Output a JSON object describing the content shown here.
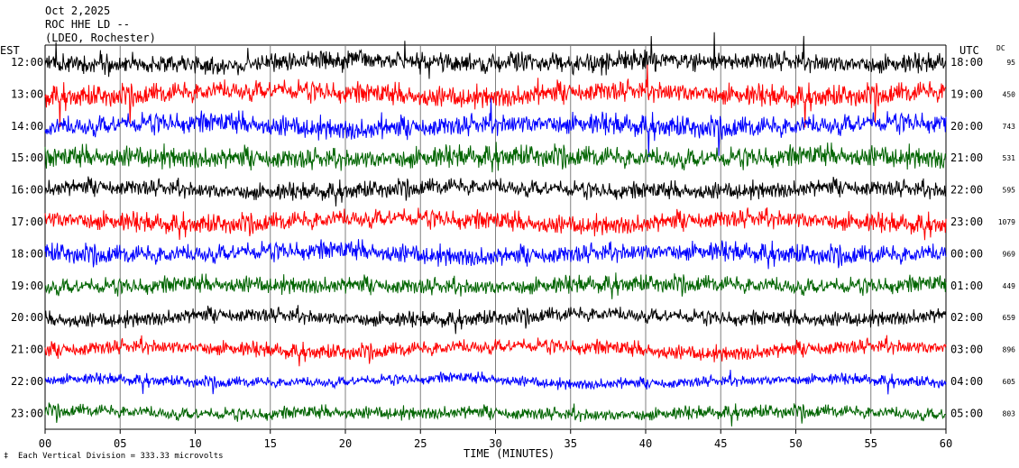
{
  "header": {
    "line1": "Oct 2,2025",
    "line2": "ROC HHE LD --",
    "line3": "(LDEO, Rochester)"
  },
  "left_axis_label": "EST",
  "right_axis_label": "UTC",
  "dc_label": "DC",
  "footer_note": "Each Vertical Division =  333.33 microvolts",
  "chart_data": {
    "type": "line",
    "title": "ROC HHE LD --",
    "xlabel": "TIME (MINUTES)",
    "ylabel": "",
    "xlim": [
      0,
      60
    ],
    "x_ticks": [
      "00",
      "05",
      "10",
      "15",
      "20",
      "25",
      "30",
      "35",
      "40",
      "45",
      "50",
      "55",
      "60"
    ],
    "trace_colors": [
      "#000000",
      "#ff0000",
      "#0000ff",
      "#006400"
    ],
    "rows": [
      {
        "est": "12:00",
        "utc": "18:00",
        "dc": "95"
      },
      {
        "est": "13:00",
        "utc": "19:00",
        "dc": "450"
      },
      {
        "est": "14:00",
        "utc": "20:00",
        "dc": "743"
      },
      {
        "est": "15:00",
        "utc": "21:00",
        "dc": "531"
      },
      {
        "est": "16:00",
        "utc": "22:00",
        "dc": "595"
      },
      {
        "est": "17:00",
        "utc": "23:00",
        "dc": "1079"
      },
      {
        "est": "18:00",
        "utc": "00:00",
        "dc": "969"
      },
      {
        "est": "19:00",
        "utc": "01:00",
        "dc": "449"
      },
      {
        "est": "20:00",
        "utc": "02:00",
        "dc": "659"
      },
      {
        "est": "21:00",
        "utc": "03:00",
        "dc": "896"
      },
      {
        "est": "22:00",
        "utc": "04:00",
        "dc": "605"
      },
      {
        "est": "23:00",
        "utc": "05:00",
        "dc": "803"
      }
    ],
    "grid": true,
    "gridline_color": "#808080"
  }
}
